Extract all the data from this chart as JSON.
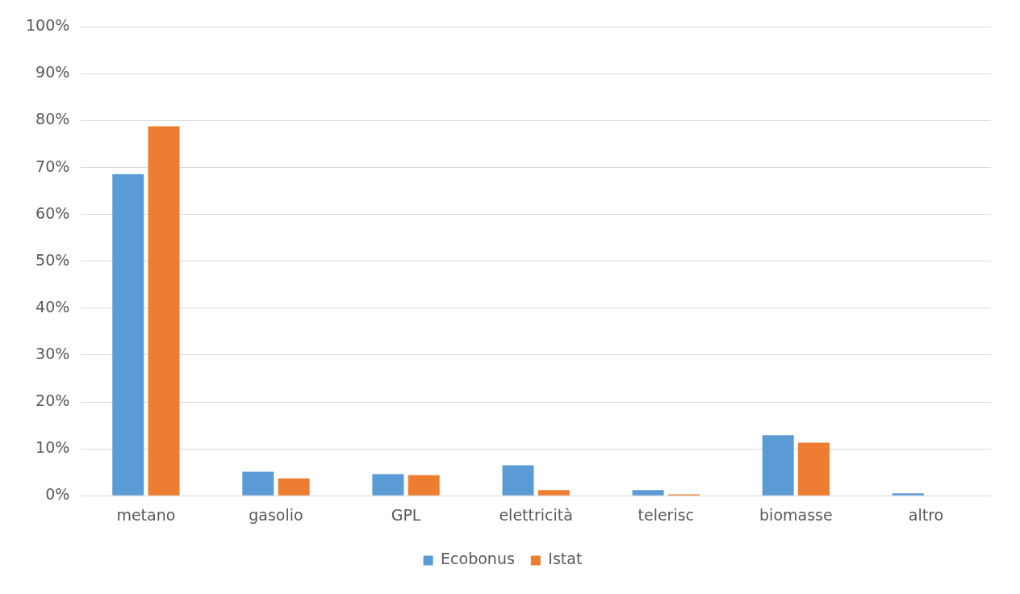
{
  "chart_data": {
    "type": "bar",
    "categories": [
      "metano",
      "gasolio",
      "GPL",
      "elettricità",
      "telerisc",
      "biomasse",
      "altro"
    ],
    "series": [
      {
        "name": "Ecobonus",
        "color": "#5b9bd5",
        "values": [
          68.6,
          5.1,
          4.6,
          6.5,
          1.2,
          12.9,
          0.5
        ]
      },
      {
        "name": "Istat",
        "color": "#ed7d31",
        "values": [
          78.8,
          3.7,
          4.4,
          1.2,
          0.3,
          11.3,
          0
        ]
      }
    ],
    "ylim": [
      0,
      100
    ],
    "yticks": [
      {
        "value": 0,
        "label": "0%"
      },
      {
        "value": 10,
        "label": "10%"
      },
      {
        "value": 20,
        "label": "20%"
      },
      {
        "value": 30,
        "label": "30%"
      },
      {
        "value": 40,
        "label": "40%"
      },
      {
        "value": 50,
        "label": "50%"
      },
      {
        "value": 60,
        "label": "60%"
      },
      {
        "value": 70,
        "label": "70%"
      },
      {
        "value": 80,
        "label": "80%"
      },
      {
        "value": 90,
        "label": "90%"
      },
      {
        "value": 100,
        "label": "100%"
      }
    ],
    "grid": "y",
    "legend": "bottom"
  }
}
